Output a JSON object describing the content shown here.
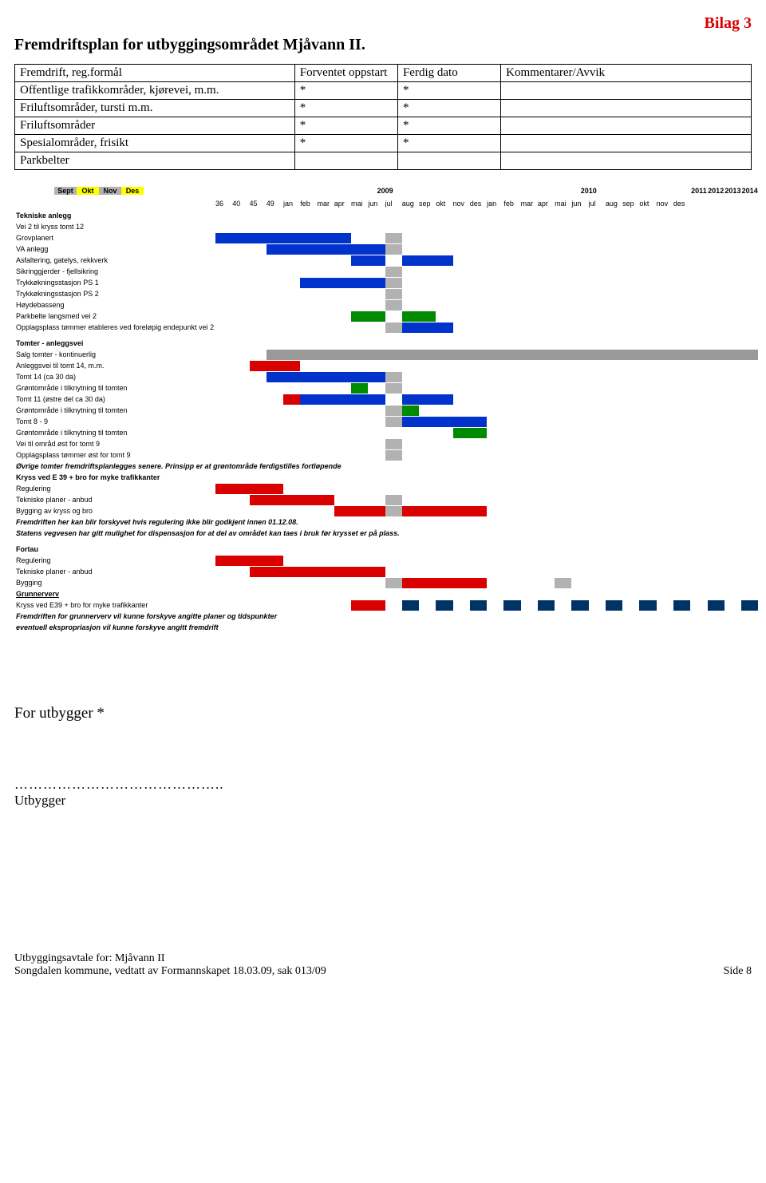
{
  "bilag": "Bilag 3",
  "title": "Fremdriftsplan for utbyggingsområdet Mjåvann II.",
  "table": {
    "headers": [
      "Fremdrift, reg.formål",
      "Forventet oppstart",
      "Ferdig dato",
      "Kommentarer/Avvik"
    ],
    "rows": [
      [
        "Offentlige trafikkområder, kjørevei, m.m.",
        "*",
        "*",
        ""
      ],
      [
        "Friluftsområder, tursti m.m.",
        "*",
        "*",
        ""
      ],
      [
        "Friluftsområder",
        "*",
        "*",
        ""
      ],
      [
        "Spesialområder, frisikt",
        "*",
        "*",
        ""
      ],
      [
        "Parkbelter",
        "",
        "",
        ""
      ]
    ]
  },
  "colors": {
    "red": "#d90000",
    "blue": "#0033cc",
    "grey": "#b2b2b2",
    "green": "#008a00",
    "darkred": "#e00000",
    "lightgrey": "#999999",
    "navy": "#003366",
    "white": "#ffffff",
    "yellow": "#ffff00"
  },
  "gantt": {
    "label_width_cols": 1,
    "total_cols": 32,
    "header1": {
      "pre": [
        "Sept",
        "Okt",
        "Nov",
        "Des"
      ],
      "pre_colors": [
        "#b2b2b2",
        "#ffff00",
        "#b2b2b2",
        "#ffff00"
      ],
      "years": [
        {
          "label": "2009",
          "span": 12
        },
        {
          "label": "2010",
          "span": 12
        },
        {
          "label": "2011",
          "span": 1
        },
        {
          "label": "2012",
          "span": 1
        },
        {
          "label": "2013",
          "span": 1
        },
        {
          "label": "2014",
          "span": 1
        }
      ]
    },
    "header2": {
      "weeks": [
        "36",
        "40",
        "45",
        "49"
      ],
      "months1": [
        "jan",
        "feb",
        "mar",
        "apr",
        "mai",
        "jun",
        "jul",
        "aug",
        "sep",
        "okt",
        "nov",
        "des"
      ],
      "months2": [
        "jan",
        "feb",
        "mar",
        "apr",
        "mai",
        "jun",
        "jul",
        "aug",
        "sep",
        "okt",
        "nov",
        "des"
      ],
      "tail": [
        "",
        "",
        "",
        ""
      ]
    },
    "grey_cols": [
      10,
      20
    ],
    "rows": [
      {
        "type": "section",
        "label": "Tekniske anlegg",
        "bold": true
      },
      {
        "label": "Vei 2 til kryss tomt 12"
      },
      {
        "label": "Grovplanert",
        "bars": [
          {
            "c": "blue",
            "from": 0,
            "to": 7
          },
          {
            "c": "grey",
            "from": 10,
            "to": 10
          }
        ]
      },
      {
        "label": "VA anlegg",
        "bars": [
          {
            "c": "blue",
            "from": 3,
            "to": 9
          },
          {
            "c": "grey",
            "from": 10,
            "to": 10
          }
        ]
      },
      {
        "label": "Asfaltering, gatelys, rekkverk",
        "bars": [
          {
            "c": "blue",
            "from": 8,
            "to": 9
          },
          {
            "c": "blue",
            "from": 11,
            "to": 13
          }
        ]
      },
      {
        "label": "Sikringgjerder - fjellsikring",
        "bars": [
          {
            "c": "grey",
            "from": 10,
            "to": 10
          }
        ]
      },
      {
        "label": "Trykkøkningsstasjon PS 1",
        "bars": [
          {
            "c": "blue",
            "from": 5,
            "to": 9
          },
          {
            "c": "grey",
            "from": 10,
            "to": 10
          }
        ]
      },
      {
        "label": "Trykkøkningsstasjon PS 2",
        "bars": [
          {
            "c": "grey",
            "from": 10,
            "to": 10
          }
        ]
      },
      {
        "label": "Høydebasseng",
        "bars": [
          {
            "c": "grey",
            "from": 10,
            "to": 10
          }
        ]
      },
      {
        "label": "Parkbelte langsmed vei 2",
        "bars": [
          {
            "c": "green",
            "from": 8,
            "to": 9
          },
          {
            "c": "green",
            "from": 11,
            "to": 12
          }
        ]
      },
      {
        "label": "Opplagsplass tømmer etableres ved foreløpig endepunkt vei 2",
        "bars": [
          {
            "c": "grey",
            "from": 10,
            "to": 10
          },
          {
            "c": "blue",
            "from": 11,
            "to": 13
          }
        ]
      },
      {
        "type": "spacer"
      },
      {
        "type": "section",
        "label": "Tomter - anleggsvei",
        "bold": true
      },
      {
        "label": "Salg tomter - kontinuerlig",
        "bars": [
          {
            "c": "lightgrey",
            "from": 3,
            "to": 31
          }
        ]
      },
      {
        "label": "Anleggsvei til tomt 14, m.m.",
        "bars": [
          {
            "c": "red",
            "from": 2,
            "to": 4
          }
        ]
      },
      {
        "label": "Tomt 14 (ca 30 da)",
        "bars": [
          {
            "c": "blue",
            "from": 3,
            "to": 9
          },
          {
            "c": "grey",
            "from": 10,
            "to": 10
          }
        ]
      },
      {
        "label": "Grøntområde i tilknytning til tomten",
        "bars": [
          {
            "c": "green",
            "from": 8,
            "to": 8
          },
          {
            "c": "grey",
            "from": 10,
            "to": 10
          }
        ]
      },
      {
        "label": "Tomt 11 (østre del ca 30 da)",
        "bars": [
          {
            "c": "red",
            "from": 4,
            "to": 4
          },
          {
            "c": "blue",
            "from": 5,
            "to": 9
          },
          {
            "c": "blue",
            "from": 11,
            "to": 13
          }
        ]
      },
      {
        "label": "Grøntområde i tilknytning til tomten",
        "bars": [
          {
            "c": "grey",
            "from": 10,
            "to": 10
          },
          {
            "c": "green",
            "from": 11,
            "to": 11
          }
        ]
      },
      {
        "label": "Tomt 8 - 9",
        "bars": [
          {
            "c": "grey",
            "from": 10,
            "to": 10
          },
          {
            "c": "blue",
            "from": 11,
            "to": 15
          }
        ]
      },
      {
        "label": "Grøntområde i tilknytning til tomten",
        "bars": [
          {
            "c": "green",
            "from": 14,
            "to": 15
          }
        ]
      },
      {
        "label": "Vei til områd øst for tomt 9",
        "bars": [
          {
            "c": "grey",
            "from": 10,
            "to": 10
          }
        ]
      },
      {
        "label": "Opplagsplass tømmer øst for tomt 9",
        "bars": [
          {
            "c": "grey",
            "from": 10,
            "to": 10
          }
        ]
      },
      {
        "type": "note",
        "label": "Øvrige tomter fremdriftsplanlegges senere. Prinsipp er at grøntområde ferdigstilles fortløpende",
        "italic": true,
        "bold": true
      },
      {
        "type": "section",
        "label": "Kryss ved E 39 + bro for myke trafikkanter",
        "bold": true
      },
      {
        "label": "Regulering",
        "bars": [
          {
            "c": "red",
            "from": 0,
            "to": 3
          }
        ]
      },
      {
        "label": "Tekniske planer - anbud",
        "bars": [
          {
            "c": "red",
            "from": 2,
            "to": 6
          },
          {
            "c": "grey",
            "from": 10,
            "to": 10
          }
        ]
      },
      {
        "label": "Bygging av kryss og bro",
        "bars": [
          {
            "c": "red",
            "from": 7,
            "to": 9
          },
          {
            "c": "grey",
            "from": 10,
            "to": 10
          },
          {
            "c": "red",
            "from": 11,
            "to": 15
          }
        ]
      },
      {
        "type": "note",
        "label": "Fremdriften her kan blir forskyvet hvis regulering ikke blir godkjent innen 01.12.08.",
        "italic": true,
        "bold": true
      },
      {
        "type": "note",
        "label": "Statens vegvesen har gitt mulighet for dispensasjon for at del av området kan taes i bruk før krysset er på plass.",
        "italic": true,
        "bold": true
      },
      {
        "type": "spacer"
      },
      {
        "type": "section",
        "label": "Fortau",
        "bold": true
      },
      {
        "label": "Regulering",
        "bars": [
          {
            "c": "red",
            "from": 0,
            "to": 3
          }
        ]
      },
      {
        "label": "Tekniske planer - anbud",
        "bars": [
          {
            "c": "red",
            "from": 2,
            "to": 9
          }
        ]
      },
      {
        "label": "Bygging",
        "bars": [
          {
            "c": "grey",
            "from": 10,
            "to": 10
          },
          {
            "c": "red",
            "from": 11,
            "to": 15
          },
          {
            "c": "grey",
            "from": 20,
            "to": 20
          }
        ]
      },
      {
        "type": "section",
        "label": "Grunnerverv",
        "bold": true,
        "underline": true
      },
      {
        "label": "Kryss ved E39 + bro for myke trafikkanter",
        "bars": [
          {
            "c": "red",
            "from": 8,
            "to": 9
          },
          {
            "c": "navy",
            "from": 11,
            "to": 11
          },
          {
            "c": "navy",
            "from": 13,
            "to": 13
          },
          {
            "c": "navy",
            "from": 15,
            "to": 15
          },
          {
            "c": "navy",
            "from": 17,
            "to": 17
          },
          {
            "c": "navy",
            "from": 19,
            "to": 19
          },
          {
            "c": "navy",
            "from": 21,
            "to": 21
          },
          {
            "c": "navy",
            "from": 23,
            "to": 23
          },
          {
            "c": "navy",
            "from": 25,
            "to": 25
          },
          {
            "c": "navy",
            "from": 27,
            "to": 27
          },
          {
            "c": "navy",
            "from": 29,
            "to": 29
          },
          {
            "c": "navy",
            "from": 31,
            "to": 31
          }
        ]
      },
      {
        "type": "note",
        "label": "Fremdriften for grunnerverv vil kunne forskyve angitte planer og tidspunkter",
        "italic": true,
        "bold": true
      },
      {
        "type": "note",
        "label": "eventuell ekspropriasjon vil kunne forskyve angitt fremdrift",
        "italic": true,
        "bold": true
      }
    ]
  },
  "footer": {
    "for_utbygger": "For utbygger *",
    "dots": "……………………………………..",
    "utbygger": "Utbygger",
    "line1": "Utbyggingsavtale for:  Mjåvann II",
    "line2": "Songdalen kommune, vedtatt av Formannskapet 18.03.09, sak 013/09",
    "side": "Side 8"
  }
}
